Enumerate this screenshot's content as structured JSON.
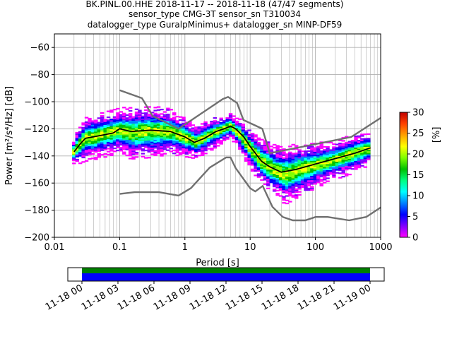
{
  "title_lines": [
    "BK.PINL.00.HHE   2018-11-17 -- 2018-11-18  (47/47 segments)",
    "sensor_type CMG-3T sensor_sn T310034",
    "datalogger_type GuralpMinimus+ datalogger_sn MINP-DF59"
  ],
  "chart_data": {
    "type": "heatmap",
    "xlabel": "Period [s]",
    "ylabel": "Power [m²/s⁴/Hz] [dB]",
    "xscale": "log",
    "xlim": [
      0.01,
      1000
    ],
    "ylim": [
      -200,
      -50
    ],
    "x_ticks": [
      0.01,
      0.1,
      1,
      10,
      100,
      1000
    ],
    "x_tick_labels": [
      "0.01",
      "0.1",
      "1",
      "10",
      "100",
      "1000"
    ],
    "y_ticks": [
      -200,
      -180,
      -160,
      -140,
      -120,
      -100,
      -80,
      -60
    ],
    "y_tick_labels": [
      "−200",
      "−180",
      "−160",
      "−140",
      "−120",
      "−100",
      "−80",
      "−60"
    ],
    "grid": true,
    "colorbar": {
      "label": "[%]",
      "range": [
        0,
        30
      ],
      "ticks": [
        0,
        5,
        10,
        15,
        20,
        25,
        30
      ],
      "tick_labels": [
        "0",
        "5",
        "10",
        "15",
        "20",
        "25",
        "30"
      ],
      "colormap": [
        "#ff00ff",
        "#8000ff",
        "#0000ff",
        "#0080ff",
        "#00ffff",
        "#00ff80",
        "#00c000",
        "#80ff00",
        "#ffff00",
        "#ffa000",
        "#ff4000",
        "#c00000"
      ]
    },
    "density_bands": [
      {
        "x": 0.02,
        "center": -137,
        "spread": 4
      },
      {
        "x": 0.025,
        "center": -131,
        "spread": 6
      },
      {
        "x": 0.03,
        "center": -127,
        "spread": 7
      },
      {
        "x": 0.04,
        "center": -126,
        "spread": 7
      },
      {
        "x": 0.06,
        "center": -124,
        "spread": 7
      },
      {
        "x": 0.1,
        "center": -121,
        "spread": 7
      },
      {
        "x": 0.15,
        "center": -123,
        "spread": 8
      },
      {
        "x": 0.3,
        "center": -122,
        "spread": 8
      },
      {
        "x": 0.6,
        "center": -122,
        "spread": 7
      },
      {
        "x": 1,
        "center": -126,
        "spread": 6
      },
      {
        "x": 1.5,
        "center": -130,
        "spread": 5
      },
      {
        "x": 2.5,
        "center": -124,
        "spread": 5
      },
      {
        "x": 4,
        "center": -120,
        "spread": 4
      },
      {
        "x": 5,
        "center": -118,
        "spread": 4
      },
      {
        "x": 7,
        "center": -124,
        "spread": 5
      },
      {
        "x": 10,
        "center": -134,
        "spread": 6
      },
      {
        "x": 15,
        "center": -144,
        "spread": 7
      },
      {
        "x": 25,
        "center": -151,
        "spread": 8
      },
      {
        "x": 35,
        "center": -154,
        "spread": 9
      },
      {
        "x": 60,
        "center": -150,
        "spread": 8
      },
      {
        "x": 100,
        "center": -147,
        "spread": 7
      },
      {
        "x": 200,
        "center": -143,
        "spread": 6
      },
      {
        "x": 400,
        "center": -138,
        "spread": 6
      },
      {
        "x": 650,
        "center": -135,
        "spread": 5
      }
    ],
    "series": [
      {
        "role": "mean",
        "color": "#000000",
        "x": [
          0.02,
          0.025,
          0.03,
          0.05,
          0.08,
          0.1,
          0.15,
          0.3,
          0.6,
          1,
          1.4,
          2,
          3,
          4,
          5,
          6,
          8,
          10,
          15,
          20,
          30,
          50,
          100,
          200,
          400,
          700
        ],
        "y": [
          -137,
          -131,
          -127,
          -125,
          -123,
          -120,
          -122,
          -121,
          -122,
          -126,
          -130,
          -127,
          -122,
          -120,
          -118,
          -120,
          -126,
          -133,
          -144,
          -148,
          -152,
          -150,
          -146,
          -142,
          -138,
          -134
        ]
      },
      {
        "role": "nhnm",
        "color": "#707070",
        "x": [
          0.1,
          0.22,
          0.32,
          0.8,
          3.8,
          4.6,
          6.3,
          7.9,
          15.4,
          20,
          354.8,
          1000
        ],
        "y": [
          -91.5,
          -97.4,
          -110.5,
          -120,
          -98,
          -96.5,
          -101,
          -113.5,
          -120,
          -138,
          -126,
          -112
        ]
      },
      {
        "role": "nlnm",
        "color": "#707070",
        "x": [
          0.1,
          0.17,
          0.4,
          0.8,
          1.24,
          2.4,
          4.3,
          5,
          6,
          10,
          12,
          15.6,
          21.9,
          31.6,
          45,
          70,
          101,
          154,
          328,
          600,
          1000
        ],
        "y": [
          -168,
          -166.7,
          -166.7,
          -169.2,
          -163.7,
          -148.6,
          -141.1,
          -141.1,
          -149,
          -163.8,
          -166.2,
          -162.1,
          -177.5,
          -185,
          -187.5,
          -187.5,
          -185,
          -185,
          -187.5,
          -185,
          -178
        ]
      }
    ]
  },
  "timeline": {
    "tick_labels": [
      "11-18 00",
      "11-18 03",
      "11-18 06",
      "11-18 09",
      "11-18 12",
      "11-18 15",
      "11-18 18",
      "11-18 21",
      "11-19 00"
    ],
    "data_color": "#008000",
    "psd_color": "#0000ff"
  }
}
